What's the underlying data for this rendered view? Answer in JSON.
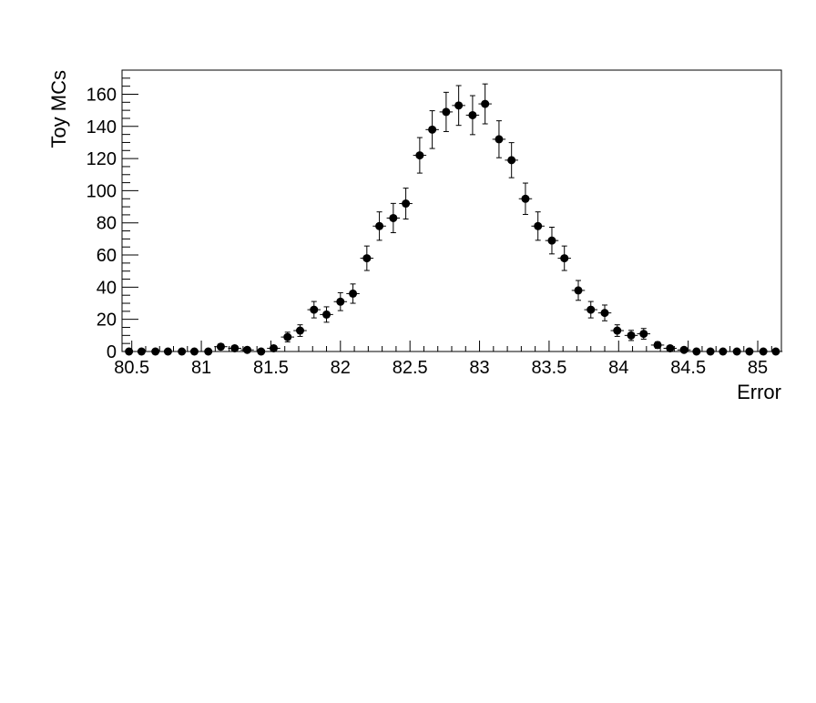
{
  "chart_data": {
    "type": "scatter",
    "xlabel": "Error",
    "ylabel": "Toy MCs",
    "xlim": [
      80.43,
      85.17
    ],
    "ylim": [
      0,
      175
    ],
    "bin_width": 0.095,
    "x_ticks": [
      80.5,
      81,
      81.5,
      82,
      82.5,
      83,
      83.5,
      84,
      84.5,
      85
    ],
    "x_tick_labels": [
      "80.5",
      "81",
      "81.5",
      "82",
      "82.5",
      "83",
      "83.5",
      "84",
      "84.5",
      "85"
    ],
    "y_ticks": [
      0,
      20,
      40,
      60,
      80,
      100,
      120,
      140,
      160
    ],
    "y_tick_labels": [
      "0",
      "20",
      "40",
      "60",
      "80",
      "100",
      "120",
      "140",
      "160"
    ],
    "grid": false,
    "legend": "none",
    "marker_color": "#000000",
    "series": [
      {
        "x": [
          80.48,
          80.57,
          80.67,
          80.76,
          80.86,
          80.95,
          81.05,
          81.14,
          81.24,
          81.33,
          81.43,
          81.52,
          81.62,
          81.71,
          81.81,
          81.9,
          82.0,
          82.09,
          82.19,
          82.28,
          82.38,
          82.47,
          82.57,
          82.66,
          82.76,
          82.85,
          82.95,
          83.04,
          83.14,
          83.23,
          83.33,
          83.42,
          83.52,
          83.61,
          83.71,
          83.8,
          83.9,
          83.99,
          84.09,
          84.18,
          84.28,
          84.37,
          84.47,
          84.56,
          84.66,
          84.75,
          84.85,
          84.94,
          85.04,
          85.13
        ],
        "y": [
          0,
          0,
          0,
          0,
          0,
          0,
          0,
          3,
          2,
          1,
          0,
          2,
          9,
          13,
          26,
          23,
          31,
          36,
          58,
          78,
          83,
          92,
          122,
          138,
          149,
          153,
          147,
          154,
          132,
          119,
          95,
          78,
          69,
          58,
          38,
          26,
          24,
          13,
          10,
          11,
          4,
          2,
          1,
          0,
          0,
          0,
          0,
          0,
          0,
          0
        ]
      }
    ]
  }
}
